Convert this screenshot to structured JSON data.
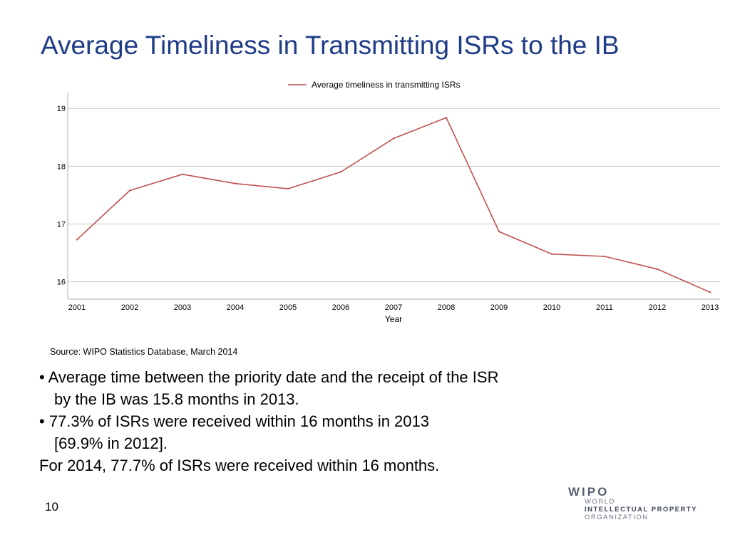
{
  "slide": {
    "title": "Average Timeliness in Transmitting ISRs to the IB",
    "source": "Source:  WIPO Statistics Database, March 2014",
    "bullets": [
      "• Average time between the priority date and the receipt of the ISR",
      "by the IB was 15.8 months in 2013.",
      "• 77.3% of ISRs were received within 16 months in 2013",
      "[69.9% in 2012].",
      "For 2014, 77.7% of ISRs were received within 16 months."
    ],
    "page_number": "10"
  },
  "logo": {
    "name": "WIPO",
    "line1": "WORLD",
    "line2": "INTELLECTUAL PROPERTY",
    "line3": "ORGANIZATION"
  },
  "colors": {
    "title": "#1f3c88",
    "series": "#c0504d",
    "grid": "#c8c8c8",
    "axis": "#b0b0b0"
  },
  "chart_data": {
    "type": "line",
    "title": "",
    "xlabel": "Year",
    "ylabel": "",
    "ylim": [
      15.7,
      19.2
    ],
    "yticks": [
      16,
      17,
      18,
      19
    ],
    "legend_position": "top-center",
    "grid": true,
    "x": [
      "2001",
      "2002",
      "2003",
      "2004",
      "2005",
      "2006",
      "2007",
      "2008",
      "2009",
      "2010",
      "2011",
      "2012",
      "2013"
    ],
    "series": [
      {
        "name": "Average timeliness in transmitting ISRs",
        "values": [
          16.73,
          17.58,
          17.86,
          17.7,
          17.61,
          17.9,
          18.48,
          18.84,
          16.87,
          16.48,
          16.44,
          16.22,
          15.82
        ]
      }
    ]
  }
}
